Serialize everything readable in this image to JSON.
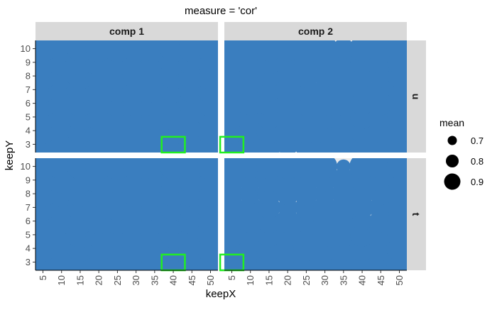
{
  "chart_data": {
    "type": "scatter",
    "title": "measure = 'cor'",
    "xlabel": "keepX",
    "ylabel": "keepY",
    "x_ticks": [
      5,
      10,
      15,
      20,
      25,
      30,
      35,
      40,
      45,
      50
    ],
    "y_ticks": [
      3,
      4,
      5,
      6,
      7,
      8,
      9,
      10
    ],
    "x_range": [
      3,
      52
    ],
    "y_range": [
      2.4,
      10.6
    ],
    "col_facets": [
      "comp 1",
      "comp 2"
    ],
    "row_facets": [
      "u",
      "t"
    ],
    "point_color": "#3a7ebf",
    "panel_background": "#ebebeb",
    "highlight_color": "#22ee22",
    "size_legend": {
      "title": "mean",
      "values": [
        0.7,
        0.8,
        0.9
      ]
    },
    "highlights": [
      {
        "row": "u",
        "col": "comp 1",
        "keepX": 40,
        "keepY": 3
      },
      {
        "row": "u",
        "col": "comp 2",
        "keepX": 5,
        "keepY": 3
      },
      {
        "row": "t",
        "col": "comp 1",
        "keepX": 40,
        "keepY": 3
      },
      {
        "row": "t",
        "col": "comp 2",
        "keepX": 5,
        "keepY": 3
      }
    ],
    "panels": [
      {
        "row": "u",
        "col": "comp 1",
        "note": "mean values indexed [keepY 3..10][keepX 5..50]",
        "mean": [
          [
            0.95,
            0.95,
            0.95,
            0.95,
            0.95,
            0.95,
            0.95,
            0.95,
            0.95,
            0.95
          ],
          [
            0.95,
            0.95,
            0.95,
            0.95,
            0.95,
            0.95,
            0.95,
            0.95,
            0.95,
            0.95
          ],
          [
            0.95,
            0.95,
            0.95,
            0.95,
            0.95,
            0.95,
            0.95,
            0.95,
            0.95,
            0.95
          ],
          [
            0.95,
            0.95,
            0.95,
            0.95,
            0.95,
            0.95,
            0.95,
            0.95,
            0.95,
            0.95
          ],
          [
            0.95,
            0.95,
            0.95,
            0.95,
            0.95,
            0.95,
            0.95,
            0.95,
            0.95,
            0.95
          ],
          [
            0.95,
            0.95,
            0.95,
            0.95,
            0.95,
            0.95,
            0.95,
            0.95,
            0.95,
            0.95
          ],
          [
            0.95,
            0.95,
            0.95,
            0.95,
            0.95,
            0.95,
            0.95,
            0.95,
            0.95,
            0.95
          ],
          [
            0.95,
            0.95,
            0.95,
            0.95,
            0.95,
            0.95,
            0.95,
            0.95,
            0.95,
            0.95
          ]
        ]
      },
      {
        "row": "u",
        "col": "comp 2",
        "mean": [
          [
            0.95,
            0.92,
            0.94,
            0.88,
            0.92,
            0.93,
            0.93,
            0.93,
            0.93,
            0.93
          ],
          [
            0.93,
            0.92,
            0.93,
            0.92,
            0.93,
            0.92,
            0.93,
            0.92,
            0.92,
            0.93
          ],
          [
            0.92,
            0.91,
            0.92,
            0.91,
            0.92,
            0.91,
            0.92,
            0.91,
            0.91,
            0.92
          ],
          [
            0.92,
            0.9,
            0.92,
            0.91,
            0.92,
            0.9,
            0.92,
            0.9,
            0.9,
            0.91
          ],
          [
            0.91,
            0.89,
            0.91,
            0.9,
            0.91,
            0.89,
            0.91,
            0.89,
            0.9,
            0.91
          ],
          [
            0.9,
            0.88,
            0.9,
            0.88,
            0.9,
            0.87,
            0.9,
            0.89,
            0.89,
            0.9
          ],
          [
            0.91,
            0.9,
            0.91,
            0.9,
            0.91,
            0.89,
            0.91,
            0.9,
            0.9,
            0.91
          ],
          [
            0.93,
            0.93,
            0.93,
            0.93,
            0.93,
            0.93,
            0.86,
            0.93,
            0.93,
            0.93
          ]
        ]
      },
      {
        "row": "t",
        "col": "comp 1",
        "mean": [
          [
            0.95,
            0.95,
            0.95,
            0.95,
            0.95,
            0.95,
            0.95,
            0.95,
            0.95,
            0.95
          ],
          [
            0.95,
            0.95,
            0.95,
            0.95,
            0.95,
            0.95,
            0.95,
            0.95,
            0.95,
            0.95
          ],
          [
            0.95,
            0.95,
            0.95,
            0.95,
            0.95,
            0.95,
            0.95,
            0.95,
            0.95,
            0.95
          ],
          [
            0.95,
            0.95,
            0.95,
            0.95,
            0.95,
            0.95,
            0.95,
            0.95,
            0.95,
            0.95
          ],
          [
            0.95,
            0.95,
            0.95,
            0.95,
            0.95,
            0.95,
            0.95,
            0.95,
            0.95,
            0.95
          ],
          [
            0.95,
            0.95,
            0.95,
            0.95,
            0.95,
            0.95,
            0.95,
            0.95,
            0.95,
            0.95
          ],
          [
            0.95,
            0.95,
            0.95,
            0.95,
            0.95,
            0.95,
            0.95,
            0.95,
            0.95,
            0.95
          ],
          [
            0.95,
            0.95,
            0.95,
            0.95,
            0.95,
            0.95,
            0.95,
            0.95,
            0.95,
            0.95
          ]
        ]
      },
      {
        "row": "t",
        "col": "comp 2",
        "mean": [
          [
            0.95,
            0.93,
            0.93,
            0.93,
            0.93,
            0.93,
            0.93,
            0.93,
            0.93,
            0.95
          ],
          [
            0.93,
            0.92,
            0.93,
            0.92,
            0.93,
            0.93,
            0.93,
            0.93,
            0.93,
            0.94
          ],
          [
            0.92,
            0.91,
            0.92,
            0.91,
            0.92,
            0.91,
            0.92,
            0.91,
            0.9,
            0.92
          ],
          [
            0.91,
            0.9,
            0.91,
            0.9,
            0.91,
            0.9,
            0.91,
            0.84,
            0.89,
            0.91
          ],
          [
            0.9,
            0.89,
            0.89,
            0.84,
            0.89,
            0.89,
            0.9,
            0.89,
            0.89,
            0.9
          ],
          [
            0.9,
            0.86,
            0.9,
            0.89,
            0.9,
            0.86,
            0.9,
            0.89,
            0.89,
            0.9
          ],
          [
            0.91,
            0.89,
            0.91,
            0.9,
            0.91,
            0.89,
            0.91,
            0.9,
            0.9,
            0.91
          ],
          [
            0.93,
            0.92,
            0.93,
            0.93,
            0.93,
            0.92,
            0.75,
            0.93,
            0.93,
            0.93
          ]
        ]
      }
    ]
  }
}
